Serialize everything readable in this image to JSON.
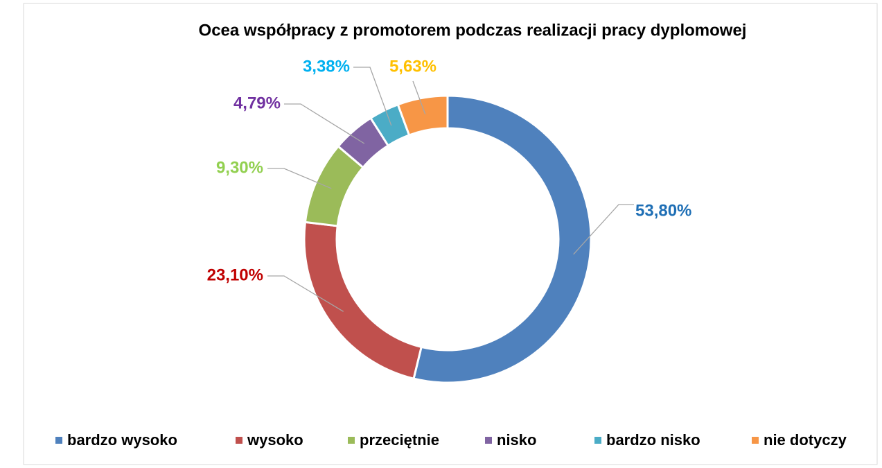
{
  "chart_data": {
    "type": "donut",
    "title": "Ocea współpracy z promotorem podczas realizacji pracy dyplomowej",
    "categories": [
      "bardzo wysoko",
      "wysoko",
      "przeciętnie",
      "nisko",
      "bardzo nisko",
      "nie dotyczy"
    ],
    "values": [
      53.8,
      23.1,
      9.3,
      4.79,
      3.38,
      5.63
    ],
    "value_labels": [
      "53,80%",
      "23,10%",
      "9,30%",
      "4,79%",
      "3,38%",
      "5,63%"
    ],
    "colors": [
      "#4f81bd",
      "#c0504d",
      "#9bbb59",
      "#8064a2",
      "#4bacc6",
      "#f79646"
    ],
    "label_colors": [
      "#1f6fb5",
      "#c00000",
      "#92d050",
      "#7030a0",
      "#00b0f0",
      "#ffc000"
    ],
    "legend": "bottom"
  }
}
